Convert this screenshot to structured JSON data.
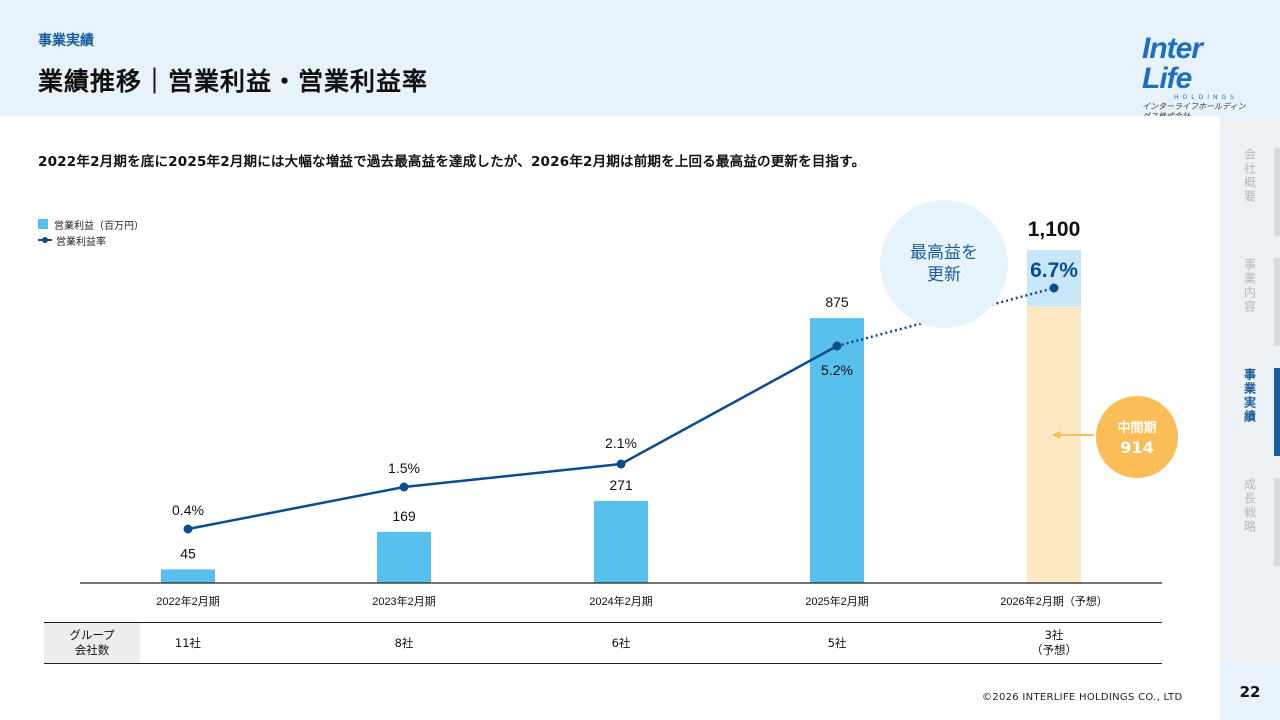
{
  "header": {
    "section": "事業実績",
    "title": "業績推移｜営業利益・営業利益率",
    "logo": {
      "main": "Inter Life",
      "sub1": "HOLDINGS",
      "sub2": "インターライフホールディングス株式会社"
    }
  },
  "summary": "2022年2月期を底に2025年2月期には大幅な増益で過去最高益を達成したが、2026年2月期は前期を上回る最高益の更新を目指す。",
  "legend": {
    "bar": "営業利益（百万円）",
    "line": "営業利益率"
  },
  "badges": {
    "record_line1": "最高益を",
    "record_line2": "更新",
    "interim_label": "中間期",
    "interim_value": "914"
  },
  "table": {
    "header_line1": "グループ",
    "header_line2": "会社数",
    "cells": [
      {
        "l1": "11社",
        "l2": ""
      },
      {
        "l1": "8社",
        "l2": ""
      },
      {
        "l1": "6社",
        "l2": ""
      },
      {
        "l1": "5社",
        "l2": ""
      },
      {
        "l1": "3社",
        "l2": "（予想）"
      }
    ]
  },
  "sidenav": {
    "items": [
      {
        "label": "会社概要",
        "active": false
      },
      {
        "label": "事業内容",
        "active": false
      },
      {
        "label": "事業実績",
        "active": true
      },
      {
        "label": "成長戦略",
        "active": false
      }
    ]
  },
  "footer": {
    "copyright": "©2026 INTERLIFE HOLDINGS CO., LTD",
    "page": "22"
  },
  "colors": {
    "bar": "#58c0ec",
    "bar_forecast_interim": "#fde8c4",
    "bar_forecast_upper": "#c7e6f8",
    "line": "#0b4c91",
    "accent": "#1a5d9e",
    "badge": "#fbbd57"
  },
  "chart_data": {
    "type": "bar",
    "categories": [
      "2022年2月期",
      "2023年2月期",
      "2024年2月期",
      "2025年2月期",
      "2026年2月期（予想）"
    ],
    "series": [
      {
        "name": "営業利益（百万円）",
        "type": "bar",
        "values": [
          45,
          169,
          271,
          875,
          1100
        ],
        "labels": [
          "45",
          "169",
          "271",
          "875",
          "1,100"
        ]
      },
      {
        "name": "営業利益率",
        "type": "line",
        "values": [
          0.4,
          1.5,
          2.1,
          5.2,
          6.7
        ],
        "labels": [
          "0.4%",
          "1.5%",
          "2.1%",
          "5.2%",
          "6.7%"
        ]
      }
    ],
    "forecast_interim": 914,
    "ylim_bar": [
      0,
      1100
    ],
    "ylim_line": [
      0,
      6.7
    ]
  }
}
